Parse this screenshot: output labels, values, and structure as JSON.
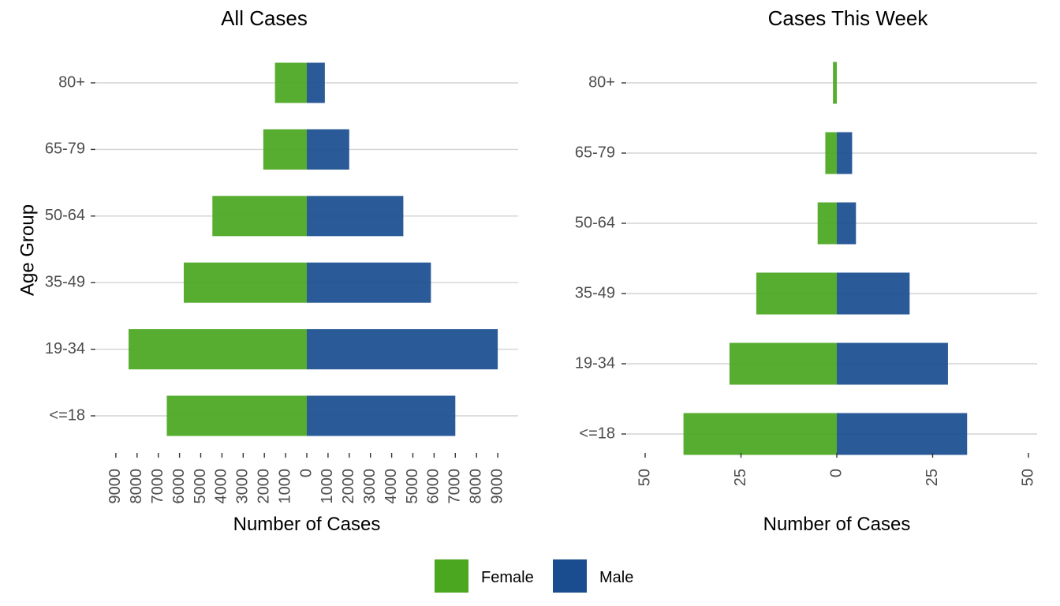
{
  "colors": {
    "female": "#4aa71f",
    "male": "#1a4d8f"
  },
  "legend": {
    "female_label": "Female",
    "male_label": "Male"
  },
  "shared_ylabel": "Age Group",
  "chart_data": [
    {
      "type": "bar",
      "orientation": "horizontal",
      "title": "All Cases",
      "xlabel": "Number of Cases",
      "ylabel": "Age Group",
      "categories": [
        "<=18",
        "19-34",
        "35-49",
        "50-64",
        "65-79",
        "80+"
      ],
      "series": [
        {
          "name": "Female",
          "values": [
            6600,
            8400,
            5800,
            4450,
            2050,
            1500
          ],
          "direction": "left"
        },
        {
          "name": "Male",
          "values": [
            7000,
            9000,
            5850,
            4550,
            2000,
            850
          ],
          "direction": "right"
        }
      ],
      "xlim": [
        -9500,
        10000
      ],
      "xticks": [
        -9000,
        -8000,
        -7000,
        -6000,
        -5000,
        -4000,
        -3000,
        -2000,
        -1000,
        0,
        1000,
        2000,
        3000,
        4000,
        5000,
        6000,
        7000,
        8000,
        9000
      ],
      "xtick_labels": [
        "9000",
        "8000",
        "7000",
        "6000",
        "5000",
        "4000",
        "3000",
        "2000",
        "1000",
        "0",
        "1000",
        "2000",
        "3000",
        "4000",
        "5000",
        "6000",
        "7000",
        "8000",
        "9000"
      ],
      "grid": "horizontal"
    },
    {
      "type": "bar",
      "orientation": "horizontal",
      "title": "Cases This Week",
      "xlabel": "Number of Cases",
      "ylabel": "",
      "categories": [
        "<=18",
        "19-34",
        "35-49",
        "50-64",
        "65-79",
        "80+"
      ],
      "series": [
        {
          "name": "Female",
          "values": [
            40,
            28,
            21,
            5,
            3,
            1
          ],
          "direction": "left"
        },
        {
          "name": "Male",
          "values": [
            34,
            29,
            19,
            5,
            4,
            0
          ],
          "direction": "right"
        }
      ],
      "xlim": [
        -50,
        50
      ],
      "xticks": [
        -50,
        -25,
        0,
        25,
        50
      ],
      "xtick_labels": [
        "50",
        "25",
        "0",
        "25",
        "50"
      ],
      "grid": "horizontal"
    }
  ]
}
